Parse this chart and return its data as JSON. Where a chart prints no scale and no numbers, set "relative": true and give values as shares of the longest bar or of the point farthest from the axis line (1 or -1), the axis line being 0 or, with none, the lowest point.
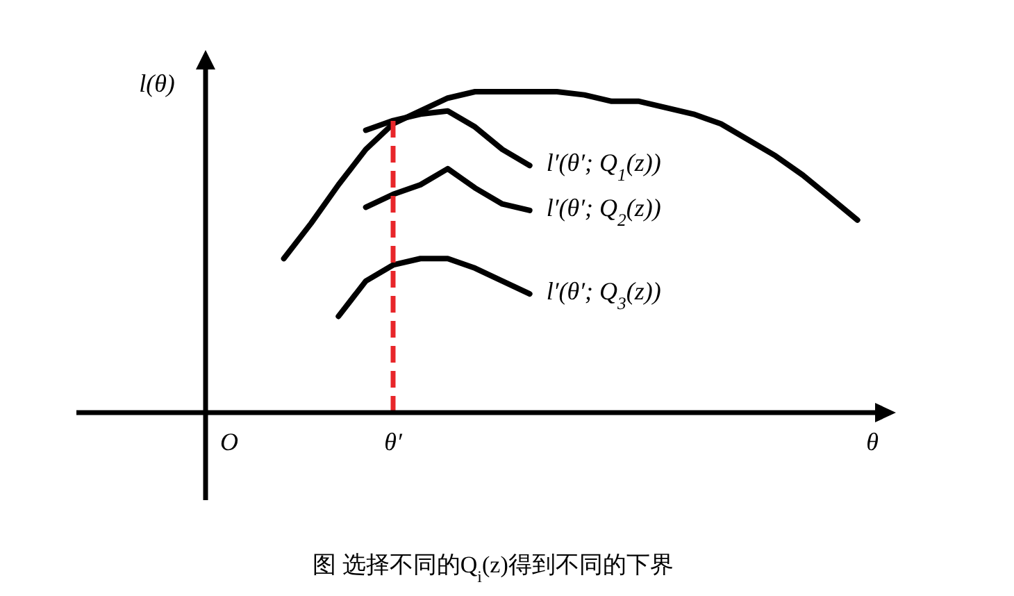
{
  "chart_data": {
    "type": "line",
    "relative": true,
    "title": "图 选择不同的Q$_{i}$(z)得到不同的下界",
    "ylabel": "l(θ)",
    "xlabel": "θ",
    "categories": [
      "O",
      null,
      null,
      null,
      null,
      null,
      "θ′",
      null,
      null,
      null,
      null,
      null,
      null,
      null,
      null,
      null,
      null,
      null,
      null,
      null,
      null,
      null,
      null,
      null,
      null
    ],
    "series": [
      {
        "color": "#000000",
        "values": [
          null,
          null,
          0.48,
          0.59,
          0.71,
          0.82,
          0.9,
          0.94,
          0.98,
          1.0,
          1.0,
          1.0,
          1.0,
          0.99,
          0.97,
          0.97,
          0.95,
          0.93,
          0.9,
          0.85,
          0.8,
          0.74,
          0.67,
          0.6,
          null
        ]
      },
      {
        "name": "l′(θ′; Q$_{1}$(z))",
        "color": "#000000",
        "values": [
          null,
          null,
          null,
          null,
          null,
          0.88,
          0.91,
          0.93,
          0.94,
          0.89,
          0.82,
          0.77,
          null,
          null,
          null,
          null,
          null,
          null,
          null,
          null,
          null,
          null,
          null,
          null,
          null
        ]
      },
      {
        "name": "l′(θ′; Q$_{2}$(z))",
        "color": "#000000",
        "values": [
          null,
          null,
          null,
          null,
          null,
          0.64,
          0.68,
          0.71,
          0.76,
          0.7,
          0.65,
          0.63,
          null,
          null,
          null,
          null,
          null,
          null,
          null,
          null,
          null,
          null,
          null,
          null,
          null
        ]
      },
      {
        "name": "l′(θ′; Q$_{3}$(z))",
        "color": "#000000",
        "values": [
          null,
          null,
          null,
          null,
          0.3,
          0.41,
          0.46,
          0.48,
          0.48,
          0.45,
          0.41,
          0.37,
          null,
          null,
          null,
          null,
          null,
          null,
          null,
          null,
          null,
          null,
          null,
          null,
          null
        ]
      }
    ],
    "ref_lines": [
      {
        "axis": "x",
        "value": "θ′",
        "color": "#e8262a",
        "line_style": "dashed"
      }
    ]
  }
}
